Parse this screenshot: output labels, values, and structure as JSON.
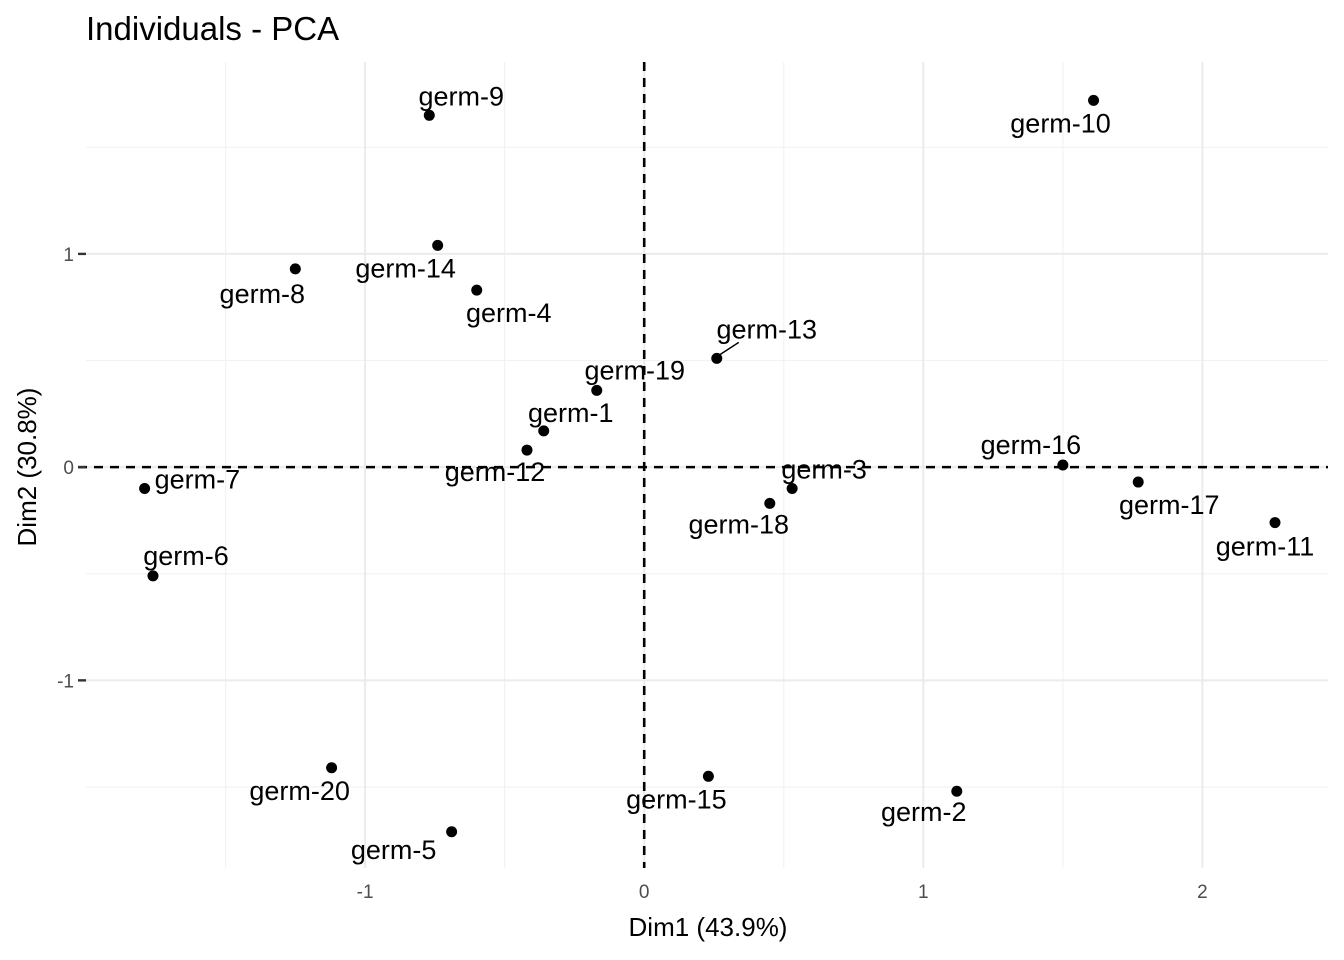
{
  "chart_data": {
    "type": "scatter",
    "title": "Individuals - PCA",
    "xlabel": "Dim1 (43.9%)",
    "ylabel": "Dim2 (30.8%)",
    "xlim": [
      -2.0,
      2.45
    ],
    "ylim": [
      -1.88,
      1.9
    ],
    "x_ticks": [
      -1,
      0,
      1,
      2
    ],
    "y_ticks": [
      1,
      0,
      -1
    ],
    "x_tick_labels": [
      "-1",
      "0",
      "1",
      "2"
    ],
    "y_tick_labels": [
      "1",
      "0",
      "-1"
    ],
    "grid": true,
    "reference_lines": {
      "x": 0,
      "y": 0,
      "style": "dashed"
    },
    "point_color": "#000000",
    "points": [
      {
        "label": "germ-1",
        "x": -0.36,
        "y": 0.17
      },
      {
        "label": "germ-2",
        "x": 1.12,
        "y": -1.52
      },
      {
        "label": "germ-3",
        "x": 0.53,
        "y": -0.1
      },
      {
        "label": "germ-4",
        "x": -0.6,
        "y": 0.83
      },
      {
        "label": "germ-5",
        "x": -0.69,
        "y": -1.71
      },
      {
        "label": "germ-6",
        "x": -1.76,
        "y": -0.51
      },
      {
        "label": "germ-7",
        "x": -1.79,
        "y": -0.1
      },
      {
        "label": "germ-8",
        "x": -1.25,
        "y": 0.93
      },
      {
        "label": "germ-9",
        "x": -0.77,
        "y": 1.65
      },
      {
        "label": "germ-10",
        "x": 1.61,
        "y": 1.72
      },
      {
        "label": "germ-11",
        "x": 2.26,
        "y": -0.26
      },
      {
        "label": "germ-12",
        "x": -0.42,
        "y": 0.08
      },
      {
        "label": "germ-13",
        "x": 0.26,
        "y": 0.51
      },
      {
        "label": "germ-14",
        "x": -0.74,
        "y": 1.04
      },
      {
        "label": "germ-15",
        "x": 0.23,
        "y": -1.45
      },
      {
        "label": "germ-16",
        "x": 1.5,
        "y": 0.01
      },
      {
        "label": "germ-17",
        "x": 1.77,
        "y": -0.07
      },
      {
        "label": "germ-18",
        "x": 0.45,
        "y": -0.17
      },
      {
        "label": "germ-19",
        "x": -0.17,
        "y": 0.36
      },
      {
        "label": "germ-20",
        "x": -1.12,
        "y": -1.41
      }
    ]
  }
}
